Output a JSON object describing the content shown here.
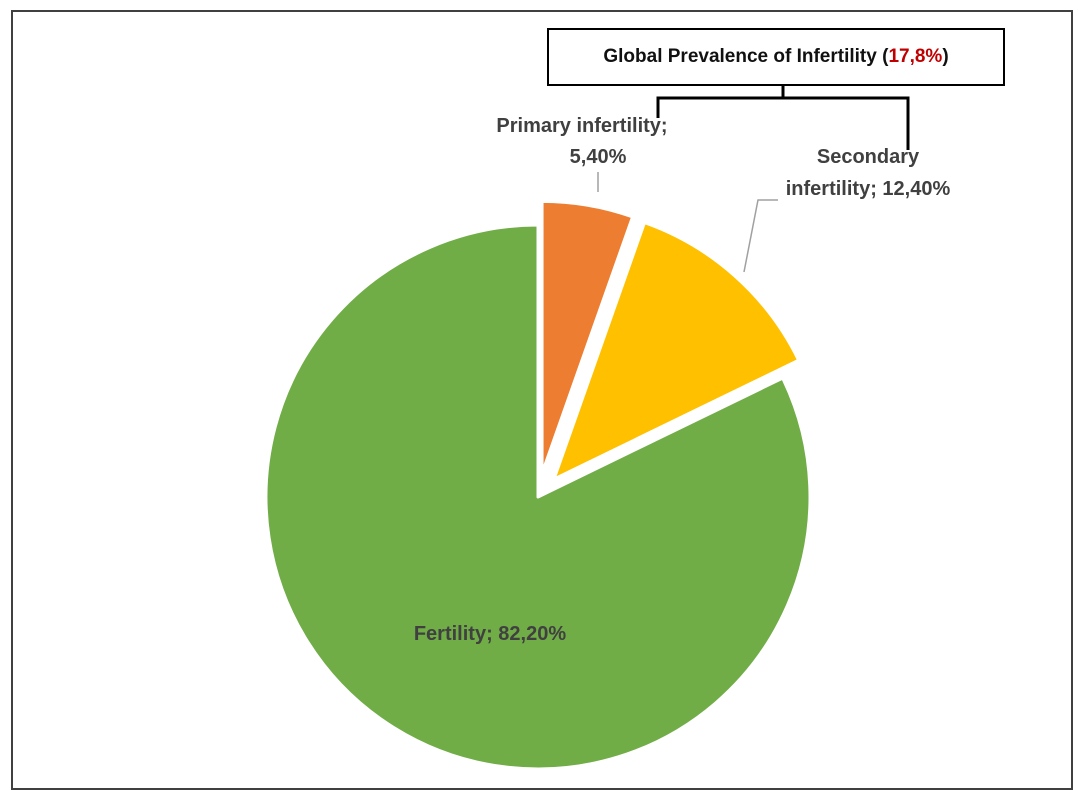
{
  "chart_data": {
    "type": "pie",
    "title_prefix": "Global Prevalence of Infertility (",
    "title_value": "17,8%",
    "title_suffix": ")",
    "slices": [
      {
        "name": "Primary infertility",
        "value": 5.4,
        "label_line1": "Primary infertility;",
        "label_line2": "5,40%",
        "color": "#ed7d31",
        "exploded": true
      },
      {
        "name": "Secondary infertility",
        "value": 12.4,
        "label_line1": "Secondary",
        "label_line2": "infertility; 12,40%",
        "color": "#ffc000",
        "exploded": true
      },
      {
        "name": "Fertility",
        "value": 82.2,
        "label_line1": "Fertility; 82,20%",
        "color": "#70ad47",
        "exploded": false
      }
    ],
    "slice_border_color": "#ffffff"
  }
}
